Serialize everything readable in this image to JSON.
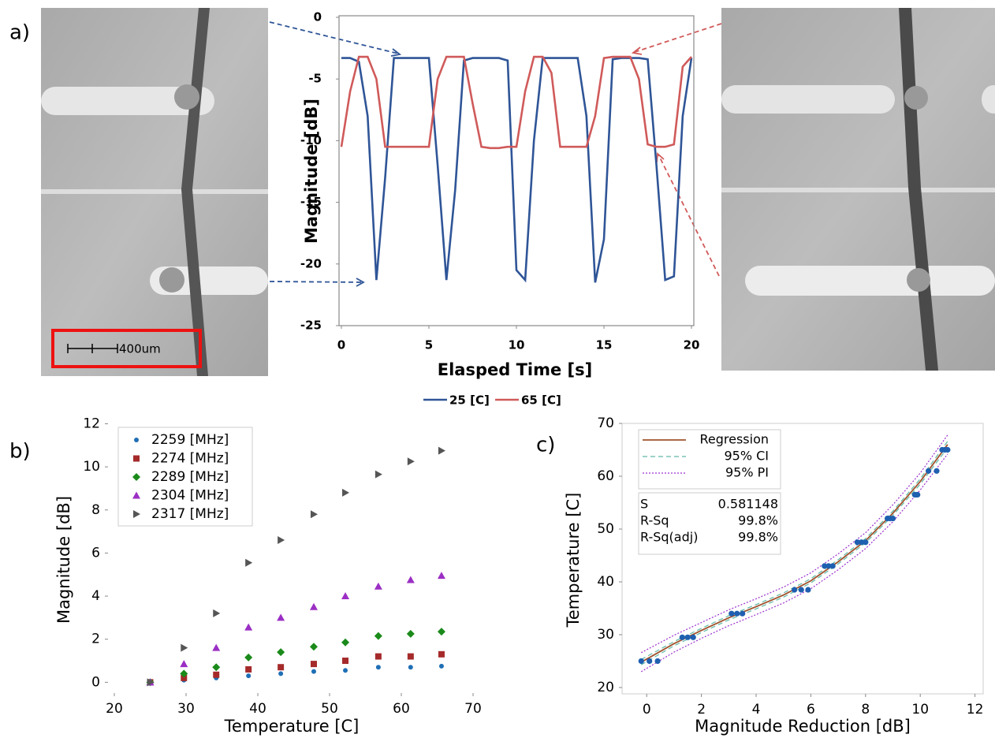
{
  "chart_data": [
    {
      "type": "line",
      "label": "a)",
      "scale_bar_label": "400um",
      "xlabel": "Elasped Time [s]",
      "ylabel": "Magnitude [dB]",
      "xlim": [
        0,
        20
      ],
      "ylim": [
        -25,
        0
      ],
      "xticks": [
        0,
        5,
        10,
        15,
        20
      ],
      "yticks": [
        -25,
        -20,
        -15,
        -10,
        -5,
        0
      ],
      "x": [
        0,
        0.5,
        1,
        1.5,
        2,
        2.5,
        3,
        3.5,
        4,
        4.5,
        5,
        5.5,
        6,
        6.5,
        7,
        7.5,
        8,
        8.5,
        9,
        9.5,
        10,
        10.5,
        11,
        11.5,
        12,
        12.5,
        13,
        13.5,
        14,
        14.5,
        15,
        15.5,
        16,
        16.5,
        17,
        17.5,
        18,
        18.5,
        19,
        19.5,
        20
      ],
      "series": [
        {
          "name": "25 [C]",
          "color": "#2f5597",
          "values": [
            -3.3,
            -3.3,
            -3.6,
            -8,
            -21.3,
            -13,
            -3.3,
            -3.3,
            -3.3,
            -3.3,
            -3.3,
            -12,
            -21.3,
            -14,
            -3.5,
            -3.3,
            -3.3,
            -3.3,
            -3.3,
            -3.5,
            -20.5,
            -21.3,
            -10,
            -3.3,
            -3.3,
            -3.3,
            -3.3,
            -3.3,
            -8,
            -21.5,
            -18,
            -3.4,
            -3.3,
            -3.3,
            -3.3,
            -3.4,
            -12,
            -21.3,
            -21,
            -8,
            -3.3
          ]
        },
        {
          "name": "65 [C]",
          "color": "#d05a5a",
          "values": [
            -10.5,
            -6,
            -3.2,
            -3.2,
            -5,
            -10.5,
            -10.5,
            -10.5,
            -10.5,
            -10.5,
            -10.5,
            -5,
            -3.2,
            -3.2,
            -3.2,
            -7,
            -10.5,
            -10.6,
            -10.6,
            -10.5,
            -10.5,
            -6,
            -3.2,
            -3.2,
            -4.5,
            -10.5,
            -10.5,
            -10.5,
            -10.5,
            -8,
            -3.3,
            -3.2,
            -3.2,
            -3.2,
            -5,
            -10.3,
            -10.5,
            -10.5,
            -10.3,
            -4,
            -3.2
          ]
        }
      ]
    },
    {
      "type": "scatter",
      "label": "b)",
      "xlabel": "Temperature [C]",
      "ylabel": "Magnitude [dB]",
      "xlim": [
        20,
        70
      ],
      "ylim": [
        -0.5,
        12.2
      ],
      "xticks": [
        20,
        30,
        40,
        50,
        60,
        70
      ],
      "yticks": [
        0,
        2,
        4,
        6,
        8,
        10,
        12
      ],
      "legend": "upper left",
      "x": [
        25,
        29.7,
        34.2,
        38.7,
        43.2,
        47.8,
        52.2,
        56.8,
        61.3,
        65.6
      ],
      "series": [
        {
          "name": "2259 [MHz]",
          "color": "#1f6fb5",
          "marker": "circle",
          "values": [
            0,
            0.1,
            0.2,
            0.3,
            0.4,
            0.5,
            0.55,
            0.7,
            0.7,
            0.75
          ]
        },
        {
          "name": "2274 [MHz]",
          "color": "#a52a2a",
          "marker": "square",
          "values": [
            0,
            0.2,
            0.35,
            0.6,
            0.7,
            0.85,
            1.0,
            1.2,
            1.2,
            1.3
          ]
        },
        {
          "name": "2289 [MHz]",
          "color": "#1a8a1a",
          "marker": "diamond",
          "values": [
            0,
            0.4,
            0.7,
            1.15,
            1.4,
            1.65,
            1.85,
            2.15,
            2.25,
            2.35
          ]
        },
        {
          "name": "2304 [MHz]",
          "color": "#9b2fc4",
          "marker": "triangle",
          "values": [
            0,
            0.85,
            1.6,
            2.55,
            3.0,
            3.5,
            4.0,
            4.45,
            4.75,
            4.95
          ]
        },
        {
          "name": "2317 [MHz]",
          "color": "#555555",
          "marker": "triangle-right",
          "values": [
            0,
            1.6,
            3.2,
            5.55,
            6.6,
            7.8,
            8.8,
            9.65,
            10.25,
            10.75
          ]
        }
      ]
    },
    {
      "type": "regression",
      "label": "c)",
      "xlabel": "Magnitude Reduction [dB]",
      "ylabel": "Temperature [C]",
      "xlim": [
        -0.9,
        12.3
      ],
      "ylim": [
        18.8,
        70
      ],
      "xticks": [
        0,
        2,
        4,
        6,
        8,
        10,
        12
      ],
      "yticks": [
        20,
        30,
        40,
        50,
        60,
        70
      ],
      "points": {
        "color": "#1f5fb0",
        "x": [
          -0.2,
          0.1,
          0.4,
          1.3,
          1.5,
          1.7,
          3.1,
          3.3,
          3.5,
          5.4,
          5.65,
          5.9,
          6.5,
          6.65,
          6.8,
          7.7,
          7.85,
          8.0,
          8.8,
          8.9,
          9.0,
          9.8,
          9.85,
          9.9,
          10.3,
          10.6,
          10.8,
          10.9,
          11.0
        ],
        "y": [
          25,
          25,
          25,
          29.5,
          29.5,
          29.5,
          34,
          34,
          34,
          38.5,
          38.5,
          38.5,
          43,
          43,
          43,
          47.5,
          47.5,
          47.5,
          52,
          52,
          52,
          56.5,
          56.5,
          56.5,
          61,
          61,
          65,
          65,
          65
        ]
      },
      "fit_x": [
        -0.2,
        1,
        2,
        3,
        4,
        5,
        6,
        7,
        8,
        9,
        10,
        11
      ],
      "regression": {
        "name": "Regression",
        "color": "#a0522d",
        "values": [
          24.8,
          28.3,
          30.8,
          33.2,
          35.3,
          37.5,
          40.2,
          43.8,
          47.8,
          53,
          59,
          66
        ]
      },
      "ci": {
        "name": "95% CI",
        "color": "#5fb8a8",
        "lower": [
          24.3,
          27.9,
          30.4,
          32.8,
          34.9,
          37.1,
          39.8,
          43.4,
          47.4,
          52.6,
          58.5,
          65.4
        ],
        "upper": [
          25.3,
          28.7,
          31.2,
          33.6,
          35.7,
          37.9,
          40.6,
          44.2,
          48.2,
          53.4,
          59.5,
          66.6
        ]
      },
      "pi": {
        "name": "95% PI",
        "color": "#9b30d0",
        "lower": [
          23,
          26.7,
          29.3,
          31.7,
          33.8,
          36,
          38.7,
          42.3,
          46.3,
          51.4,
          57.4,
          64.2
        ],
        "upper": [
          26.6,
          29.9,
          32.3,
          34.7,
          36.8,
          39,
          41.7,
          45.3,
          49.3,
          54.6,
          60.6,
          67.8
        ]
      },
      "stats": [
        [
          "S",
          "0.581148"
        ],
        [
          "R-Sq",
          "99.8%"
        ],
        [
          "R-Sq(adj)",
          "99.8%"
        ]
      ]
    }
  ]
}
